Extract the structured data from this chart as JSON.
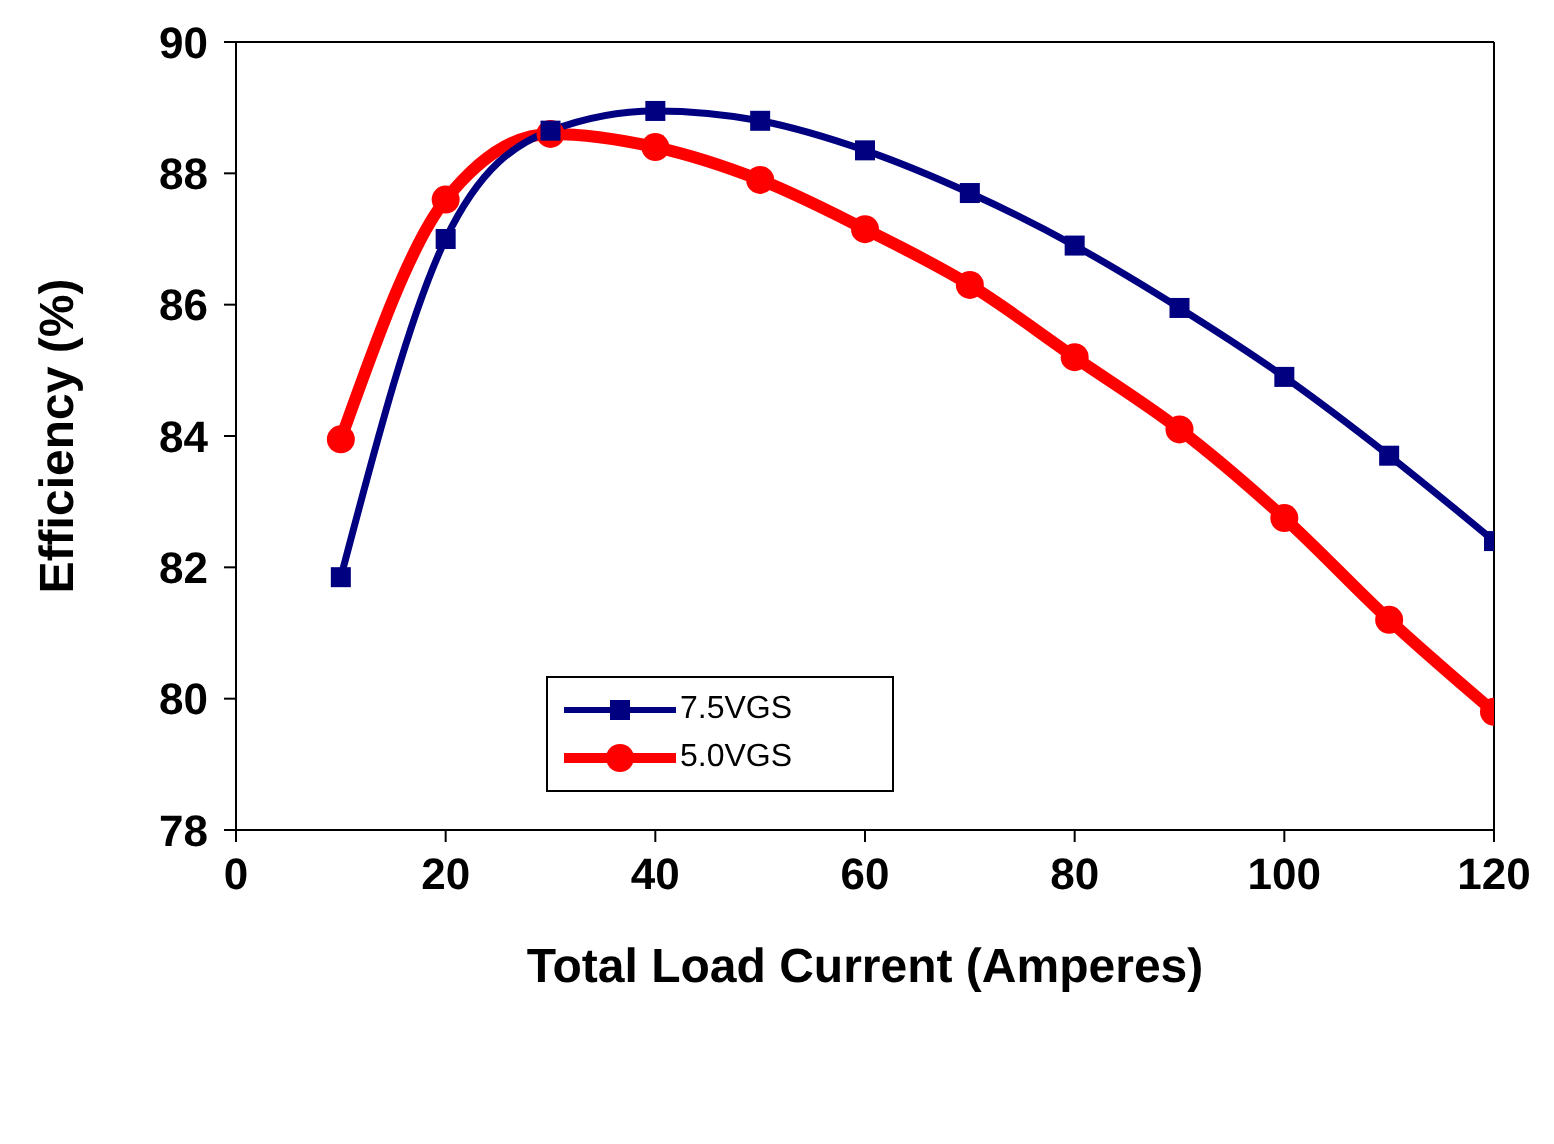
{
  "chart_data": {
    "type": "line",
    "xlabel": "Total Load Current (Amperes)",
    "ylabel": "Efficiency (%)",
    "x": [
      10,
      20,
      30,
      40,
      50,
      60,
      70,
      80,
      90,
      100,
      110,
      120
    ],
    "series": [
      {
        "name": "7.5VGS",
        "color": "#000080",
        "marker": "square",
        "values": [
          81.85,
          87.0,
          88.65,
          88.95,
          88.8,
          88.35,
          87.7,
          86.9,
          85.95,
          84.9,
          83.7,
          82.4
        ]
      },
      {
        "name": "5.0VGS",
        "color": "#ff0000",
        "marker": "circle",
        "values": [
          83.95,
          87.6,
          88.6,
          88.4,
          87.9,
          87.15,
          86.3,
          85.2,
          84.1,
          82.75,
          81.2,
          79.8
        ]
      }
    ],
    "xlim": [
      0,
      120
    ],
    "xticks": [
      0,
      20,
      40,
      60,
      80,
      100,
      120
    ],
    "ylim": [
      78,
      90
    ],
    "yticks": [
      78,
      80,
      82,
      84,
      86,
      88,
      90
    ],
    "grid": false,
    "legend": "bottom left",
    "line_style": "solid"
  }
}
